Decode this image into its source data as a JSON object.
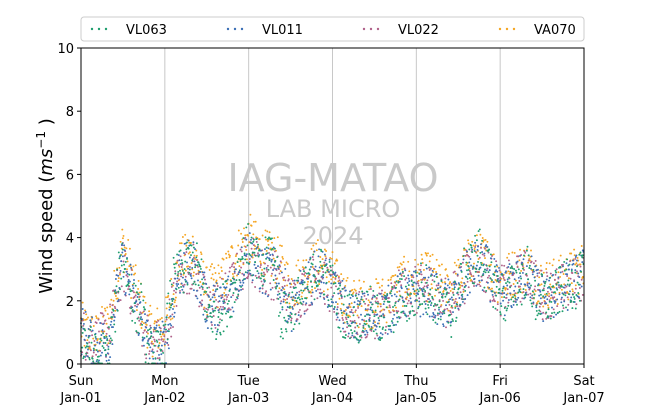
{
  "chart_data": {
    "type": "scatter",
    "title": "",
    "ylabel": "Wind speed (ms⁻¹ )",
    "xlabel": "",
    "ylim": [
      0,
      10
    ],
    "yticks": [
      0,
      2,
      4,
      6,
      8,
      10
    ],
    "xlim": [
      "2023-01-01",
      "2023-01-07"
    ],
    "xticks": [
      {
        "day": "Sun",
        "date": "Jan-01"
      },
      {
        "day": "Mon",
        "date": "Jan-02"
      },
      {
        "day": "Tue",
        "date": "Jan-03"
      },
      {
        "day": "Wed",
        "date": "Jan-04"
      },
      {
        "day": "Thu",
        "date": "Jan-05"
      },
      {
        "day": "Fri",
        "date": "Jan-06"
      },
      {
        "day": "Sat",
        "date": "Jan-07"
      }
    ],
    "grid": "vertical",
    "legend_position": "top",
    "watermark": [
      "IAG-MATAO",
      "LAB MICRO",
      "2024"
    ],
    "series": [
      {
        "name": "VL063",
        "color": "#1f9e6e",
        "trend": [
          [
            0,
            1.0
          ],
          [
            2,
            0.6
          ],
          [
            4,
            0.2
          ],
          [
            6,
            0.2
          ],
          [
            8,
            0.5
          ],
          [
            9,
            1.2
          ],
          [
            10,
            1.8
          ],
          [
            11,
            3.0
          ],
          [
            12,
            3.5
          ],
          [
            13,
            3.0
          ],
          [
            14,
            2.4
          ],
          [
            15,
            2.0
          ],
          [
            16,
            1.6
          ],
          [
            17,
            2.0
          ],
          [
            18,
            1.2
          ],
          [
            19,
            0.5
          ],
          [
            20,
            0.3
          ],
          [
            22,
            0.3
          ],
          [
            24,
            0.5
          ],
          [
            26,
            2.5
          ],
          [
            28,
            2.8
          ],
          [
            30,
            3.0
          ],
          [
            32,
            3.3
          ],
          [
            34,
            2.9
          ],
          [
            36,
            1.8
          ],
          [
            38,
            1.5
          ],
          [
            40,
            1.7
          ],
          [
            42,
            2.0
          ],
          [
            44,
            2.5
          ],
          [
            46,
            3.3
          ],
          [
            48,
            3.7
          ],
          [
            50,
            3.2
          ],
          [
            52,
            2.8
          ],
          [
            54,
            3.8
          ],
          [
            56,
            3.0
          ],
          [
            57,
            1.6
          ],
          [
            58,
            1.5
          ],
          [
            60,
            1.8
          ],
          [
            62,
            2.0
          ],
          [
            64,
            2.2
          ],
          [
            66,
            2.7
          ],
          [
            68,
            3.0
          ],
          [
            70,
            2.8
          ],
          [
            72,
            2.4
          ],
          [
            74,
            1.8
          ],
          [
            76,
            1.5
          ],
          [
            78,
            1.6
          ],
          [
            80,
            1.4
          ],
          [
            82,
            1.8
          ],
          [
            84,
            1.5
          ],
          [
            86,
            1.4
          ],
          [
            88,
            1.6
          ],
          [
            90,
            1.8
          ],
          [
            92,
            2.2
          ],
          [
            94,
            2.0
          ],
          [
            96,
            2.2
          ],
          [
            98,
            2.6
          ],
          [
            100,
            2.2
          ],
          [
            102,
            2.0
          ],
          [
            104,
            1.8
          ],
          [
            106,
            1.6
          ],
          [
            108,
            2.2
          ],
          [
            110,
            3.0
          ],
          [
            112,
            3.2
          ],
          [
            114,
            3.6
          ],
          [
            116,
            3.0
          ],
          [
            118,
            2.6
          ],
          [
            120,
            2.2
          ],
          [
            122,
            2.0
          ],
          [
            124,
            2.6
          ],
          [
            126,
            2.6
          ],
          [
            128,
            3.0
          ],
          [
            130,
            2.0
          ],
          [
            132,
            2.1
          ],
          [
            134,
            2.0
          ],
          [
            136,
            2.2
          ],
          [
            138,
            2.4
          ],
          [
            140,
            2.6
          ],
          [
            142,
            2.5
          ],
          [
            144,
            3.0
          ]
        ]
      },
      {
        "name": "VL011",
        "color": "#3b6fb6",
        "trend": [
          [
            0,
            1.1
          ],
          [
            4,
            0.6
          ],
          [
            8,
            0.8
          ],
          [
            12,
            3.2
          ],
          [
            16,
            1.8
          ],
          [
            20,
            0.5
          ],
          [
            24,
            0.6
          ],
          [
            28,
            2.9
          ],
          [
            32,
            3.2
          ],
          [
            36,
            1.9
          ],
          [
            40,
            1.8
          ],
          [
            44,
            2.5
          ],
          [
            48,
            3.6
          ],
          [
            52,
            2.9
          ],
          [
            56,
            2.9
          ],
          [
            60,
            1.8
          ],
          [
            64,
            2.3
          ],
          [
            68,
            3.0
          ],
          [
            72,
            2.4
          ],
          [
            76,
            1.6
          ],
          [
            80,
            1.5
          ],
          [
            84,
            1.5
          ],
          [
            88,
            1.7
          ],
          [
            92,
            2.2
          ],
          [
            96,
            2.2
          ],
          [
            100,
            2.3
          ],
          [
            104,
            1.8
          ],
          [
            108,
            2.2
          ],
          [
            112,
            3.1
          ],
          [
            116,
            3.0
          ],
          [
            120,
            2.2
          ],
          [
            124,
            2.5
          ],
          [
            128,
            2.9
          ],
          [
            132,
            2.1
          ],
          [
            136,
            2.2
          ],
          [
            140,
            2.5
          ],
          [
            144,
            2.9
          ]
        ]
      },
      {
        "name": "VL022",
        "color": "#b0628a",
        "trend": [
          [
            0,
            1.0
          ],
          [
            4,
            0.7
          ],
          [
            8,
            1.0
          ],
          [
            12,
            3.1
          ],
          [
            16,
            1.7
          ],
          [
            20,
            0.6
          ],
          [
            24,
            0.7
          ],
          [
            28,
            2.8
          ],
          [
            32,
            3.1
          ],
          [
            36,
            1.8
          ],
          [
            40,
            1.9
          ],
          [
            44,
            2.6
          ],
          [
            48,
            3.5
          ],
          [
            52,
            2.9
          ],
          [
            56,
            2.8
          ],
          [
            60,
            1.9
          ],
          [
            64,
            2.4
          ],
          [
            68,
            2.9
          ],
          [
            72,
            2.3
          ],
          [
            76,
            1.5
          ],
          [
            80,
            1.5
          ],
          [
            84,
            1.6
          ],
          [
            88,
            1.8
          ],
          [
            92,
            2.3
          ],
          [
            96,
            2.3
          ],
          [
            100,
            2.4
          ],
          [
            104,
            1.9
          ],
          [
            108,
            2.3
          ],
          [
            112,
            3.2
          ],
          [
            116,
            3.0
          ],
          [
            120,
            2.3
          ],
          [
            124,
            2.6
          ],
          [
            128,
            2.9
          ],
          [
            132,
            2.2
          ],
          [
            136,
            2.3
          ],
          [
            140,
            2.5
          ],
          [
            144,
            2.8
          ]
        ]
      },
      {
        "name": "VA070",
        "color": "#f5a623",
        "trend": [
          [
            0,
            1.2
          ],
          [
            4,
            0.8
          ],
          [
            8,
            1.3
          ],
          [
            12,
            3.8
          ],
          [
            16,
            2.2
          ],
          [
            20,
            1.0
          ],
          [
            24,
            1.2
          ],
          [
            28,
            3.1
          ],
          [
            32,
            3.6
          ],
          [
            36,
            2.3
          ],
          [
            40,
            2.5
          ],
          [
            44,
            3.4
          ],
          [
            48,
            4.0
          ],
          [
            52,
            3.5
          ],
          [
            56,
            3.3
          ],
          [
            60,
            2.4
          ],
          [
            64,
            2.8
          ],
          [
            68,
            3.2
          ],
          [
            72,
            2.8
          ],
          [
            76,
            2.0
          ],
          [
            80,
            1.9
          ],
          [
            84,
            1.9
          ],
          [
            88,
            2.1
          ],
          [
            92,
            2.6
          ],
          [
            96,
            2.6
          ],
          [
            100,
            2.8
          ],
          [
            104,
            2.3
          ],
          [
            108,
            2.6
          ],
          [
            112,
            3.4
          ],
          [
            116,
            3.3
          ],
          [
            120,
            2.6
          ],
          [
            124,
            2.9
          ],
          [
            128,
            3.1
          ],
          [
            132,
            2.5
          ],
          [
            136,
            2.6
          ],
          [
            140,
            2.8
          ],
          [
            144,
            3.1
          ]
        ]
      }
    ]
  }
}
